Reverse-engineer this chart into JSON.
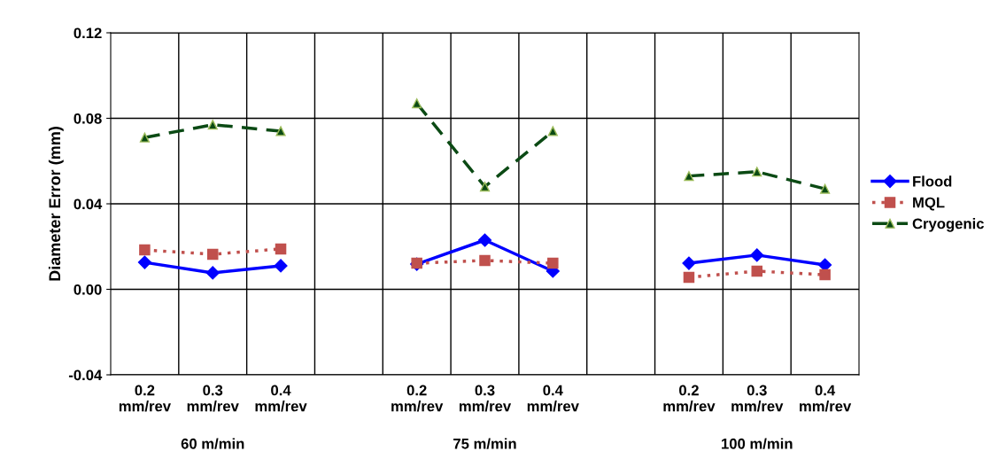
{
  "chart_data": {
    "type": "line",
    "ylabel": "Diameter Error (mm)",
    "categories": [
      "0.2\nmm/rev",
      "0.3\nmm/rev",
      "0.4\nmm/rev",
      null,
      "0.2\nmm/rev",
      "0.3\nmm/rev",
      "0.4\nmm/rev",
      null,
      "0.2\nmm/rev",
      "0.3\nmm/rev",
      "0.4\nmm/rev"
    ],
    "series": [
      {
        "name": "Flood",
        "color": "#0000ff",
        "marker": "diamond",
        "line_style": "solid",
        "values": [
          0.0126,
          0.0077,
          0.011,
          null,
          0.0118,
          0.023,
          0.0085,
          null,
          0.0122,
          0.016,
          0.0114
        ]
      },
      {
        "name": "MQL",
        "color": "#c0504d",
        "marker": "square",
        "line_style": "dotted",
        "values": [
          0.0184,
          0.0164,
          0.0189,
          null,
          0.0122,
          0.0135,
          0.0122,
          null,
          0.0056,
          0.0085,
          0.0068
        ]
      },
      {
        "name": "Cryogenic",
        "color": "#0b4a14",
        "marker": "triangle",
        "line_style": "dashed",
        "values": [
          0.071,
          0.077,
          0.074,
          null,
          0.087,
          0.048,
          0.074,
          null,
          0.053,
          0.055,
          0.047
        ]
      }
    ],
    "ylim": [
      -0.04,
      0.12
    ],
    "yticks": [
      {
        "value": -0.04,
        "label": "-0.04"
      },
      {
        "value": 0,
        "label": "0.00"
      },
      {
        "value": 0.04,
        "label": "0.04"
      },
      {
        "value": 0.08,
        "label": "0.08"
      },
      {
        "value": 0.12,
        "label": "0.12"
      }
    ],
    "grid": true,
    "legend": "right",
    "annotations": [
      "60 m/min",
      "75 m/min",
      "100 m/min"
    ]
  }
}
